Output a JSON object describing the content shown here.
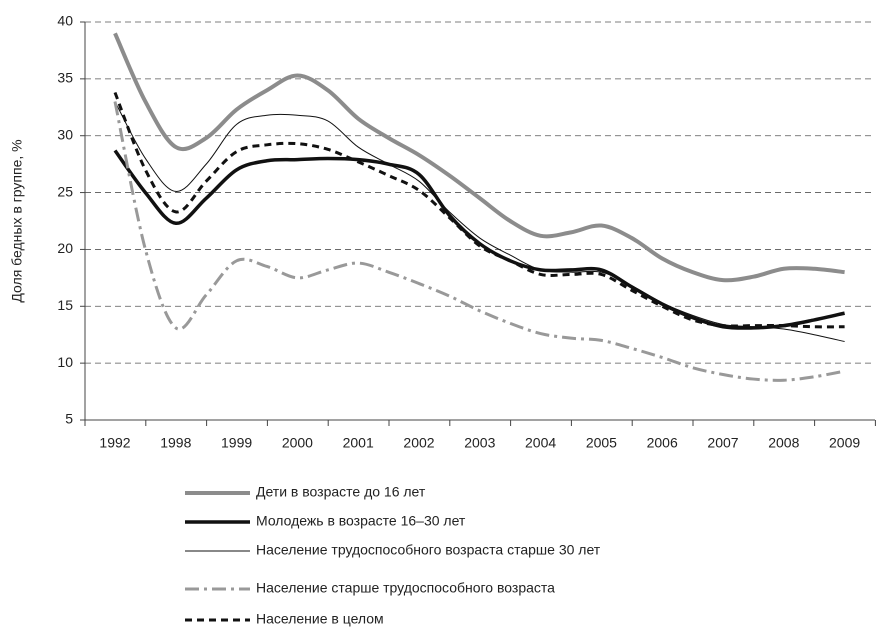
{
  "chart_data": {
    "type": "line",
    "y_label": "Доля бедных в группе, %",
    "categories": [
      "1992",
      null,
      "1998",
      null,
      "1999",
      null,
      "2000",
      null,
      "2001",
      null,
      "2002",
      null,
      "2003",
      null,
      "2004",
      null,
      "2005",
      null,
      "2006",
      null,
      "2007",
      null,
      "2008",
      null,
      "2009"
    ],
    "ylim": [
      5,
      40
    ],
    "yticks": [
      5,
      10,
      15,
      20,
      25,
      30,
      35,
      40
    ],
    "grid": true,
    "legend": "bottom",
    "series": [
      {
        "name": "Дети в возрасте до 16 лет",
        "color": "#8c8c8c",
        "line_width": 4,
        "line_style": "solid",
        "values": [
          39,
          33,
          29,
          29.8,
          32.3,
          34,
          35.3,
          34,
          31.5,
          29.8,
          28.3,
          26.5,
          24.5,
          22.5,
          21.2,
          21.5,
          22.1,
          21,
          19.2,
          18,
          17.3,
          17.6,
          18.3,
          18.3,
          18
        ]
      },
      {
        "name": "Молодежь в возрасте 16–30 лет",
        "color": "#111111",
        "line_width": 3.5,
        "line_style": "solid",
        "values": [
          28.7,
          25,
          22.3,
          24.5,
          27,
          27.8,
          27.9,
          28,
          27.9,
          27.5,
          26.6,
          23,
          20.5,
          19,
          18.2,
          18.2,
          18.2,
          16.7,
          15.2,
          14,
          13.2,
          13.1,
          13.3,
          13.8,
          14.4
        ]
      },
      {
        "name": "Население трудоспособного возраста старше 30 лет",
        "color": "#111111",
        "line_width": 1,
        "line_style": "solid",
        "values": [
          33,
          28,
          25.1,
          27.5,
          31,
          31.8,
          31.8,
          31.3,
          29,
          27.5,
          26,
          23.3,
          21,
          19.5,
          18.2,
          18,
          18,
          16.8,
          15.3,
          14.2,
          13.4,
          13.2,
          13,
          12.5,
          11.9
        ]
      },
      {
        "name": "Население старше трудоспособного возраста",
        "color": "#999999",
        "line_width": 3,
        "line_style": "dash-dot",
        "values": [
          33,
          20,
          13.1,
          16,
          19,
          18.5,
          17.5,
          18.2,
          18.8,
          18,
          17,
          15.9,
          14.6,
          13.5,
          12.6,
          12.2,
          12,
          11.3,
          10.5,
          9.6,
          9,
          8.6,
          8.5,
          8.8,
          9.3
        ]
      },
      {
        "name": "Население в целом",
        "color": "#111111",
        "line_width": 3,
        "line_style": "dashed",
        "values": [
          33.8,
          27,
          23.3,
          26,
          28.6,
          29.2,
          29.3,
          28.8,
          27.7,
          26.5,
          25.2,
          22.8,
          20.3,
          19,
          17.8,
          17.8,
          17.8,
          16.4,
          15,
          13.8,
          13.3,
          13.3,
          13.3,
          13.2,
          13.2
        ]
      }
    ]
  }
}
